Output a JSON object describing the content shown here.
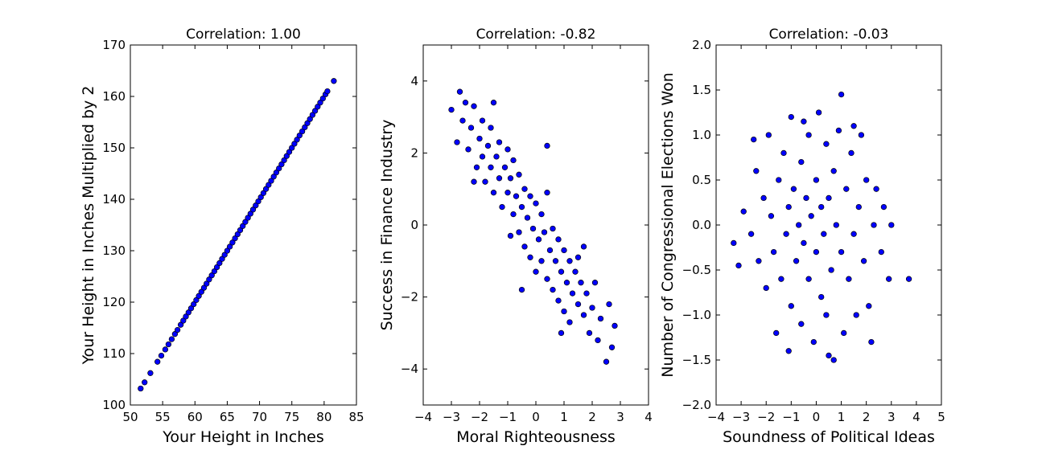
{
  "chart_data": [
    {
      "type": "scatter",
      "title": "Correlation: 1.00",
      "xlabel": "Your Height in Inches",
      "ylabel": "Your Height in Inches Multiplied by 2",
      "xlim": [
        50,
        85
      ],
      "ylim": [
        100,
        170
      ],
      "xticks": [
        50,
        55,
        60,
        65,
        70,
        75,
        80,
        85
      ],
      "yticks": [
        100,
        110,
        120,
        130,
        140,
        150,
        160,
        170
      ],
      "marker_color": "#0000ff",
      "points": [
        [
          51.6,
          103.2
        ],
        [
          52.2,
          104.4
        ],
        [
          53.1,
          106.2
        ],
        [
          54.2,
          108.4
        ],
        [
          54.8,
          109.6
        ],
        [
          55.4,
          110.8
        ],
        [
          55.9,
          111.8
        ],
        [
          56.4,
          112.8
        ],
        [
          56.9,
          113.8
        ],
        [
          57.3,
          114.6
        ],
        [
          57.8,
          115.6
        ],
        [
          58.2,
          116.4
        ],
        [
          58.6,
          117.2
        ],
        [
          59.0,
          118.0
        ],
        [
          59.4,
          118.8
        ],
        [
          59.8,
          119.6
        ],
        [
          60.2,
          120.4
        ],
        [
          60.6,
          121.2
        ],
        [
          61.0,
          122.0
        ],
        [
          61.4,
          122.8
        ],
        [
          61.8,
          123.6
        ],
        [
          62.2,
          124.4
        ],
        [
          62.6,
          125.2
        ],
        [
          63.0,
          126.0
        ],
        [
          63.4,
          126.8
        ],
        [
          63.8,
          127.6
        ],
        [
          64.2,
          128.4
        ],
        [
          64.6,
          129.2
        ],
        [
          65.0,
          130.0
        ],
        [
          65.4,
          130.8
        ],
        [
          65.8,
          131.6
        ],
        [
          66.2,
          132.4
        ],
        [
          66.6,
          133.2
        ],
        [
          67.0,
          134.0
        ],
        [
          67.4,
          134.8
        ],
        [
          67.8,
          135.6
        ],
        [
          68.2,
          136.4
        ],
        [
          68.6,
          137.2
        ],
        [
          69.0,
          138.0
        ],
        [
          69.4,
          138.8
        ],
        [
          69.8,
          139.6
        ],
        [
          70.2,
          140.4
        ],
        [
          70.6,
          141.2
        ],
        [
          71.0,
          142.0
        ],
        [
          71.4,
          142.8
        ],
        [
          71.8,
          143.6
        ],
        [
          72.2,
          144.4
        ],
        [
          72.6,
          145.2
        ],
        [
          73.0,
          146.0
        ],
        [
          73.4,
          146.8
        ],
        [
          73.8,
          147.6
        ],
        [
          74.2,
          148.4
        ],
        [
          74.6,
          149.2
        ],
        [
          75.0,
          150.0
        ],
        [
          75.4,
          150.8
        ],
        [
          75.8,
          151.6
        ],
        [
          76.2,
          152.4
        ],
        [
          76.6,
          153.2
        ],
        [
          77.0,
          154.0
        ],
        [
          77.4,
          154.8
        ],
        [
          77.8,
          155.6
        ],
        [
          78.2,
          156.4
        ],
        [
          78.6,
          157.2
        ],
        [
          79.0,
          158.0
        ],
        [
          79.4,
          158.8
        ],
        [
          79.8,
          159.6
        ],
        [
          80.2,
          160.4
        ],
        [
          80.5,
          161.0
        ],
        [
          81.5,
          163.0
        ]
      ]
    },
    {
      "type": "scatter",
      "title": "Correlation: -0.82",
      "xlabel": "Moral Righteousness",
      "ylabel": "Success in Finance Industry",
      "xlim": [
        -4,
        4
      ],
      "ylim": [
        -5,
        5
      ],
      "xticks": [
        -4,
        -3,
        -2,
        -1,
        0,
        1,
        2,
        3,
        4
      ],
      "yticks": [
        -4,
        -2,
        0,
        2,
        4
      ],
      "marker_color": "#0000ff",
      "points": [
        [
          -3.0,
          3.2
        ],
        [
          -2.8,
          2.3
        ],
        [
          -2.7,
          3.7
        ],
        [
          -2.6,
          2.9
        ],
        [
          -2.5,
          3.4
        ],
        [
          -2.4,
          2.1
        ],
        [
          -2.3,
          2.7
        ],
        [
          -2.2,
          3.3
        ],
        [
          -2.1,
          1.6
        ],
        [
          -2.0,
          2.4
        ],
        [
          -1.9,
          1.9
        ],
        [
          -1.9,
          2.9
        ],
        [
          -1.8,
          1.2
        ],
        [
          -1.7,
          2.2
        ],
        [
          -1.6,
          1.6
        ],
        [
          -1.6,
          2.7
        ],
        [
          -1.5,
          0.9
        ],
        [
          -1.4,
          1.9
        ],
        [
          -1.3,
          1.3
        ],
        [
          -1.3,
          2.3
        ],
        [
          -1.2,
          0.5
        ],
        [
          -1.1,
          1.6
        ],
        [
          -1.0,
          0.9
        ],
        [
          -1.0,
          2.1
        ],
        [
          -0.9,
          1.3
        ],
        [
          -0.8,
          0.3
        ],
        [
          -0.8,
          1.8
        ],
        [
          -0.7,
          0.8
        ],
        [
          -0.6,
          -0.2
        ],
        [
          -0.6,
          1.4
        ],
        [
          -0.5,
          0.5
        ],
        [
          -0.4,
          1.0
        ],
        [
          -0.4,
          -0.6
        ],
        [
          -0.3,
          0.2
        ],
        [
          -0.2,
          0.8
        ],
        [
          -0.2,
          -0.9
        ],
        [
          -0.1,
          -0.1
        ],
        [
          0.0,
          0.6
        ],
        [
          0.0,
          -1.3
        ],
        [
          0.1,
          -0.4
        ],
        [
          0.2,
          0.3
        ],
        [
          0.2,
          -1.0
        ],
        [
          0.3,
          -0.2
        ],
        [
          0.4,
          0.9
        ],
        [
          0.4,
          -1.5
        ],
        [
          0.5,
          -0.7
        ],
        [
          0.6,
          -0.1
        ],
        [
          0.6,
          -1.8
        ],
        [
          0.7,
          -1.0
        ],
        [
          0.8,
          -0.4
        ],
        [
          0.8,
          -2.1
        ],
        [
          0.9,
          -1.3
        ],
        [
          1.0,
          -0.7
        ],
        [
          1.0,
          -2.4
        ],
        [
          1.1,
          -1.6
        ],
        [
          1.2,
          -1.0
        ],
        [
          1.2,
          -2.7
        ],
        [
          1.3,
          -1.9
        ],
        [
          1.4,
          -1.3
        ],
        [
          1.5,
          -2.2
        ],
        [
          1.5,
          -0.9
        ],
        [
          1.6,
          -1.6
        ],
        [
          1.7,
          -2.5
        ],
        [
          1.8,
          -1.9
        ],
        [
          1.9,
          -3.0
        ],
        [
          2.0,
          -2.3
        ],
        [
          2.1,
          -1.6
        ],
        [
          2.2,
          -3.2
        ],
        [
          2.3,
          -2.6
        ],
        [
          2.5,
          -3.8
        ],
        [
          2.6,
          -2.2
        ],
        [
          2.7,
          -3.4
        ],
        [
          2.8,
          -2.8
        ],
        [
          -2.2,
          1.2
        ],
        [
          -1.5,
          3.4
        ],
        [
          -0.9,
          -0.3
        ],
        [
          0.4,
          2.2
        ],
        [
          1.7,
          -0.6
        ],
        [
          0.9,
          -3.0
        ],
        [
          -0.5,
          -1.8
        ]
      ]
    },
    {
      "type": "scatter",
      "title": "Correlation: -0.03",
      "xlabel": "Soundness of Political Ideas",
      "ylabel": "Number of Congressional Elections Won",
      "xlim": [
        -4,
        5
      ],
      "ylim": [
        -2.0,
        2.0
      ],
      "xticks": [
        -4,
        -3,
        -2,
        -1,
        0,
        1,
        2,
        3,
        4,
        5
      ],
      "yticks": [
        -2.0,
        -1.5,
        -1.0,
        -0.5,
        0.0,
        0.5,
        1.0,
        1.5,
        2.0
      ],
      "marker_color": "#0000ff",
      "points": [
        [
          -3.3,
          -0.2
        ],
        [
          -3.1,
          -0.45
        ],
        [
          -2.9,
          0.15
        ],
        [
          -2.6,
          -0.1
        ],
        [
          -2.4,
          0.6
        ],
        [
          -2.3,
          -0.4
        ],
        [
          -2.1,
          0.3
        ],
        [
          -2.0,
          -0.7
        ],
        [
          -1.9,
          1.0
        ],
        [
          -1.8,
          0.1
        ],
        [
          -1.7,
          -0.3
        ],
        [
          -1.6,
          -1.2
        ],
        [
          -1.5,
          0.5
        ],
        [
          -1.4,
          -0.6
        ],
        [
          -1.3,
          0.8
        ],
        [
          -1.2,
          -0.1
        ],
        [
          -1.1,
          0.2
        ],
        [
          -1.0,
          -0.9
        ],
        [
          -1.0,
          1.2
        ],
        [
          -0.9,
          0.4
        ],
        [
          -0.8,
          -0.4
        ],
        [
          -0.7,
          0.0
        ],
        [
          -0.6,
          -1.1
        ],
        [
          -0.6,
          0.7
        ],
        [
          -0.5,
          -0.2
        ],
        [
          -0.4,
          0.3
        ],
        [
          -0.3,
          1.0
        ],
        [
          -0.3,
          -0.6
        ],
        [
          -0.2,
          0.1
        ],
        [
          -0.1,
          -1.3
        ],
        [
          0.0,
          0.5
        ],
        [
          0.0,
          -0.3
        ],
        [
          0.1,
          1.25
        ],
        [
          0.2,
          -0.8
        ],
        [
          0.2,
          0.2
        ],
        [
          0.3,
          -0.1
        ],
        [
          0.4,
          0.9
        ],
        [
          0.4,
          -1.0
        ],
        [
          0.5,
          0.3
        ],
        [
          0.6,
          -0.5
        ],
        [
          0.7,
          -1.5
        ],
        [
          0.7,
          0.6
        ],
        [
          0.8,
          0.0
        ],
        [
          0.9,
          1.05
        ],
        [
          1.0,
          -0.3
        ],
        [
          1.0,
          1.45
        ],
        [
          1.1,
          -1.2
        ],
        [
          1.2,
          0.4
        ],
        [
          1.3,
          -0.6
        ],
        [
          1.4,
          0.8
        ],
        [
          1.5,
          -0.1
        ],
        [
          1.6,
          -1.0
        ],
        [
          1.7,
          0.2
        ],
        [
          1.8,
          1.0
        ],
        [
          1.9,
          -0.4
        ],
        [
          2.0,
          0.5
        ],
        [
          2.1,
          -0.9
        ],
        [
          2.2,
          -1.3
        ],
        [
          2.3,
          0.0
        ],
        [
          2.4,
          0.4
        ],
        [
          2.6,
          -0.3
        ],
        [
          2.7,
          0.2
        ],
        [
          2.9,
          -0.6
        ],
        [
          3.0,
          0.0
        ],
        [
          3.7,
          -0.6
        ],
        [
          -2.5,
          0.95
        ],
        [
          -1.1,
          -1.4
        ],
        [
          0.5,
          -1.45
        ],
        [
          1.5,
          1.1
        ],
        [
          -0.5,
          1.15
        ]
      ]
    }
  ]
}
